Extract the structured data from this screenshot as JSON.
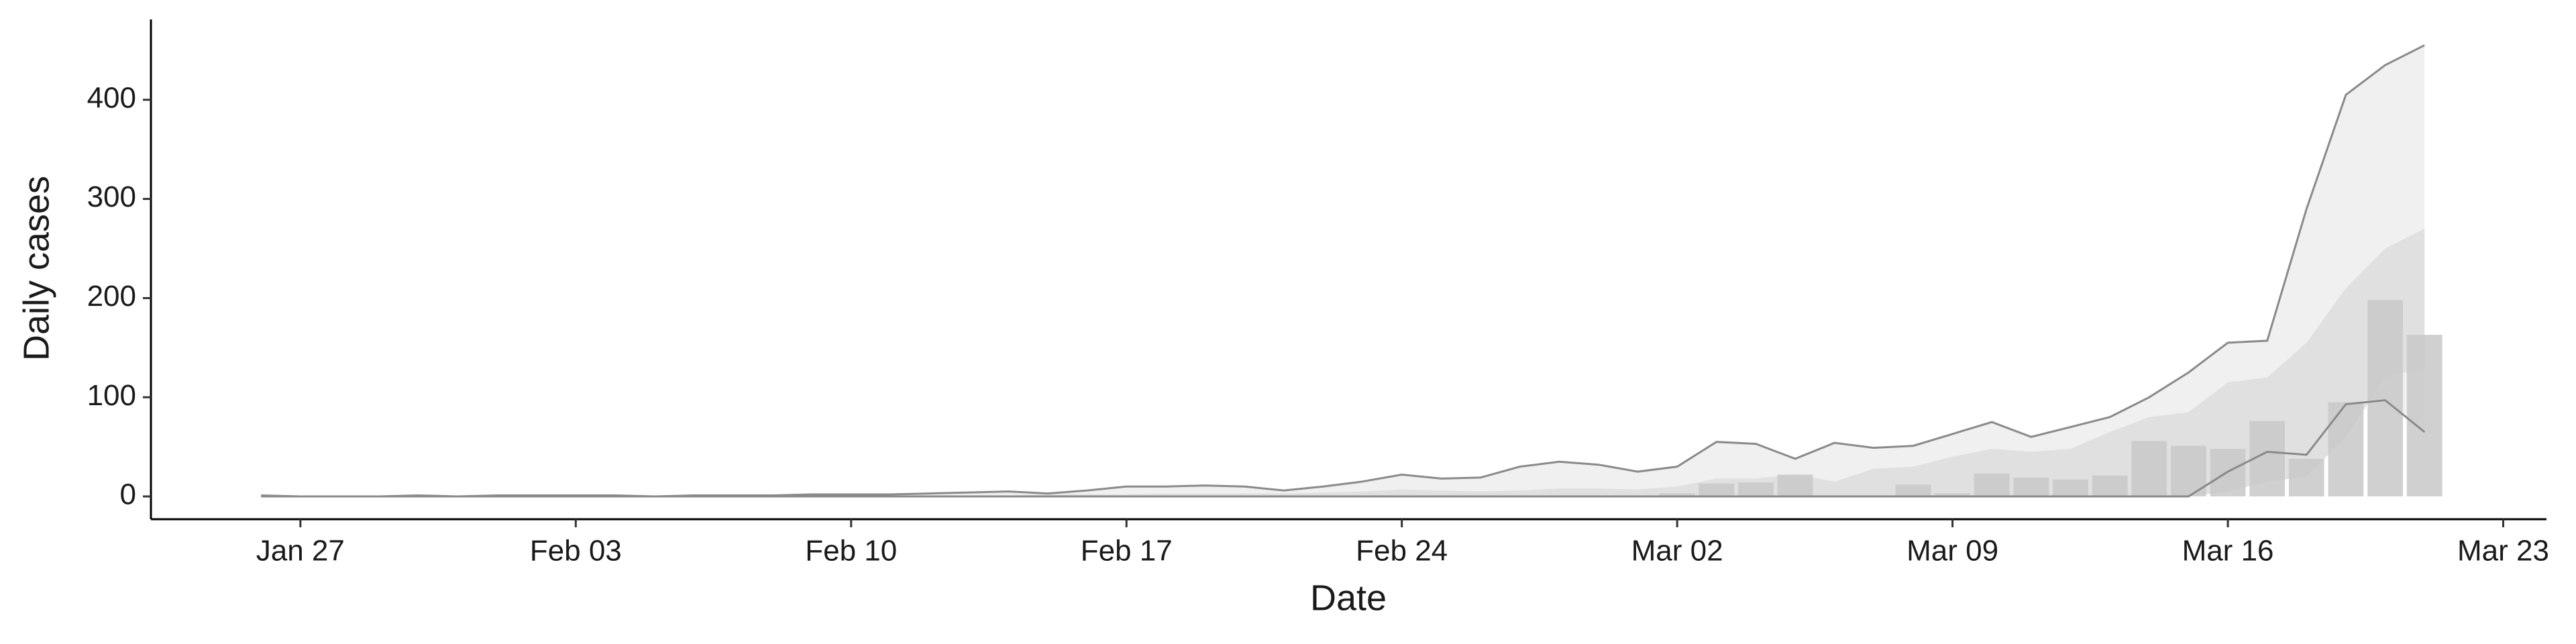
{
  "chart_data": {
    "type": "bar-band",
    "x_label": "Date",
    "y_label": "Daily cases",
    "x": [
      26,
      27,
      28,
      29,
      30,
      31,
      32,
      33,
      34,
      35,
      36,
      37,
      38,
      39,
      40,
      41,
      42,
      43,
      44,
      45,
      46,
      47,
      48,
      49,
      50,
      51,
      52,
      53,
      54,
      55,
      56,
      57,
      58,
      59,
      60,
      61,
      62,
      63,
      64,
      65,
      66,
      67,
      68,
      69,
      70,
      71,
      72,
      73,
      74,
      75,
      76,
      77,
      78,
      79,
      80,
      81
    ],
    "xlim": [
      23.2,
      84.1
    ],
    "xticks": [
      {
        "value": 27,
        "label": "Jan 27"
      },
      {
        "value": 34,
        "label": "Feb 03"
      },
      {
        "value": 41,
        "label": "Feb 10"
      },
      {
        "value": 48,
        "label": "Feb 17"
      },
      {
        "value": 55,
        "label": "Feb 24"
      },
      {
        "value": 62,
        "label": "Mar 02"
      },
      {
        "value": 69,
        "label": "Mar 09"
      },
      {
        "value": 76,
        "label": "Mar 16"
      },
      {
        "value": 83,
        "label": "Mar 23"
      }
    ],
    "ylim": [
      -23,
      481
    ],
    "yticks": [
      0,
      100,
      200,
      300,
      400
    ],
    "bars": {
      "color": "#c8c8c8",
      "values": [
        0,
        0,
        0,
        0,
        0,
        0,
        0,
        0,
        0,
        0,
        0,
        0,
        0,
        0,
        0,
        0,
        0,
        0,
        0,
        0,
        0,
        0,
        0,
        0,
        0,
        0,
        0,
        0,
        0,
        0,
        0,
        0,
        0,
        0,
        0,
        1,
        3,
        13,
        14,
        22,
        0,
        0,
        12,
        3,
        23,
        19,
        17,
        21,
        56,
        51,
        48,
        76,
        38,
        95,
        198,
        163
      ]
    },
    "bands": [
      {
        "color": "#f0f0f0",
        "line_color": "#8a8a8a",
        "upper": [
          1,
          0,
          0,
          0,
          1,
          0,
          1,
          1,
          1,
          1,
          0,
          1,
          1,
          1,
          2,
          2,
          2,
          3,
          4,
          5,
          3,
          6,
          10,
          10,
          11,
          10,
          6,
          10,
          15,
          22,
          18,
          19,
          30,
          35,
          32,
          25,
          30,
          55,
          53,
          38,
          54,
          49,
          51,
          63,
          75,
          60,
          70,
          80,
          100,
          125,
          155,
          157,
          290,
          405,
          435,
          455
        ],
        "lower": [
          0,
          0,
          0,
          0,
          0,
          0,
          0,
          0,
          0,
          0,
          0,
          0,
          0,
          0,
          0,
          0,
          0,
          0,
          0,
          0,
          0,
          0,
          0,
          0,
          0,
          0,
          0,
          0,
          0,
          0,
          0,
          0,
          0,
          0,
          0,
          0,
          0,
          0,
          0,
          0,
          0,
          0,
          0,
          0,
          0,
          0,
          0,
          0,
          0,
          0,
          25,
          45,
          42,
          93,
          97,
          65
        ]
      },
      {
        "color": "#e0e0e0",
        "upper": [
          0,
          0,
          0,
          0,
          0,
          0,
          0,
          0,
          0,
          0,
          0,
          0,
          0,
          0,
          0,
          1,
          1,
          1,
          1,
          1,
          2,
          2,
          2,
          3,
          3,
          3,
          3,
          4,
          5,
          7,
          6,
          5,
          6,
          8,
          8,
          7,
          10,
          18,
          18,
          22,
          15,
          28,
          30,
          40,
          48,
          45,
          48,
          65,
          80,
          85,
          115,
          120,
          155,
          210,
          250,
          270
        ],
        "lower": [
          0,
          0,
          0,
          0,
          0,
          0,
          0,
          0,
          0,
          0,
          0,
          0,
          0,
          0,
          0,
          0,
          0,
          0,
          0,
          0,
          0,
          0,
          0,
          0,
          0,
          0,
          0,
          0,
          0,
          0,
          0,
          0,
          0,
          0,
          0,
          0,
          0,
          0,
          0,
          0,
          0,
          0,
          0,
          0,
          0,
          0,
          0,
          0,
          0,
          0,
          5,
          15,
          20,
          60,
          120,
          130
        ]
      }
    ]
  }
}
